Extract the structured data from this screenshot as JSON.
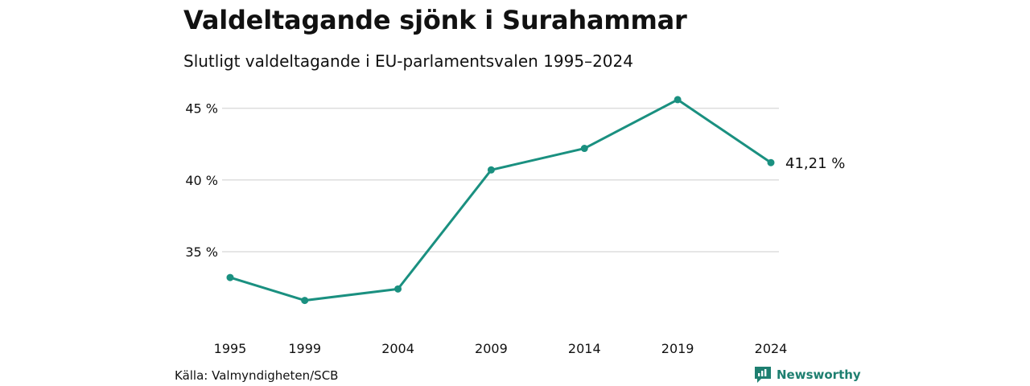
{
  "title": "Valdeltagande sjönk i Surahammar",
  "subtitle": "Slutligt valdeltagande i EU-parlamentsvalen 1995–2024",
  "source": "Källa: Valmyndigheten/SCB",
  "brand": {
    "name": "Newsworthy",
    "icon": "newsworthy-logo-icon"
  },
  "colors": {
    "line": "#1a9080",
    "grid": "#dddddd",
    "text": "#111111",
    "brand": "#1e7f70"
  },
  "chart_data": {
    "type": "line",
    "x": [
      1995,
      1999,
      2004,
      2009,
      2014,
      2019,
      2024
    ],
    "x_tick_labels": [
      "1995",
      "1999",
      "2004",
      "2009",
      "2014",
      "2019",
      "2024"
    ],
    "series": [
      {
        "values": [
          33.2,
          31.6,
          32.4,
          40.7,
          42.2,
          45.6,
          41.21
        ]
      }
    ],
    "y_ticks": [
      35,
      40,
      45
    ],
    "y_tick_labels": [
      "35 %",
      "40 %",
      "45 %"
    ],
    "ylim": [
      30.4,
      46.1
    ],
    "end_label": "41,21 %",
    "grid": "horizontal",
    "legend": "none"
  }
}
